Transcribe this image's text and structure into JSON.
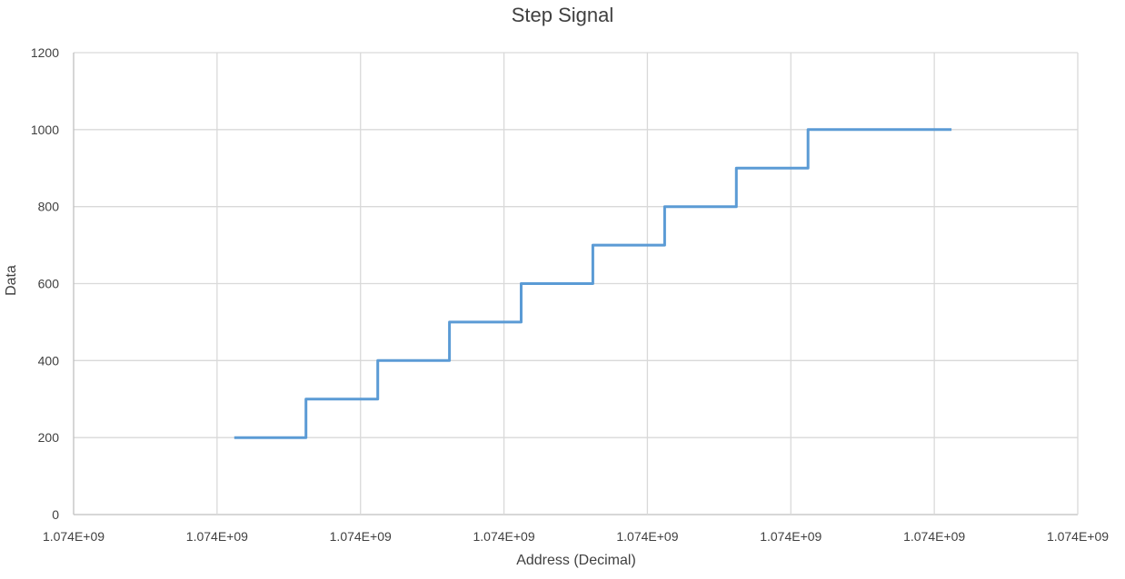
{
  "chart_data": {
    "type": "line",
    "title": "Step Signal",
    "xlabel": "Address (Decimal)",
    "ylabel": "Data",
    "x_tick_labels": [
      "1.074E+09",
      "1.074E+09",
      "1.074E+09",
      "1.074E+09",
      "1.074E+09",
      "1.074E+09",
      "1.074E+09",
      "1.074E+09"
    ],
    "y_ticks": [
      0,
      200,
      400,
      600,
      800,
      1000,
      1200
    ],
    "ylim": [
      0,
      1200
    ],
    "xlim_tick_index": [
      0,
      7
    ],
    "grid": true,
    "colors": {
      "series": "#5B9BD5",
      "grid": "#d9d9d9",
      "axis": "#bfbfbf"
    },
    "series": [
      {
        "step_x_tick_index": [
          1.12,
          1.62,
          1.62,
          2.12,
          2.12,
          2.62,
          2.62,
          3.12,
          3.12,
          3.62,
          3.62,
          4.12,
          4.12,
          4.62,
          4.62,
          5.12,
          5.12,
          6.12
        ],
        "values": [
          200,
          200,
          300,
          300,
          400,
          400,
          500,
          500,
          600,
          600,
          700,
          700,
          800,
          800,
          900,
          900,
          1000,
          1000
        ]
      }
    ]
  }
}
